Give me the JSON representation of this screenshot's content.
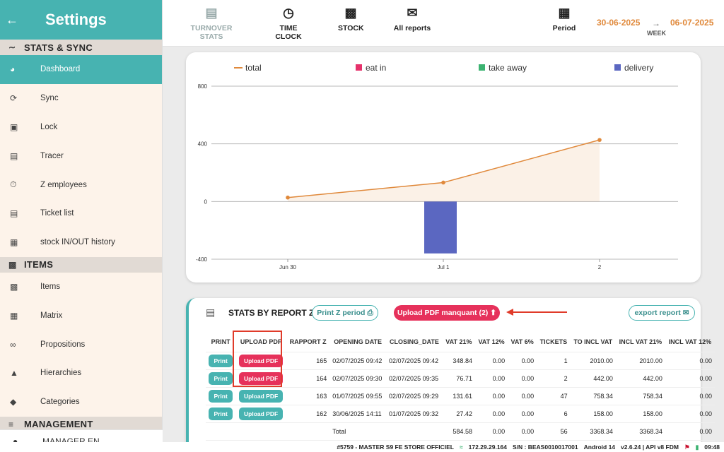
{
  "sidebar": {
    "title": "Settings",
    "sections": [
      {
        "label": "STATS & SYNC",
        "icon": "trend-icon"
      },
      {
        "label": "ITEMS",
        "icon": "box-icon"
      },
      {
        "label": "MANAGEMENT",
        "icon": "sliders-icon"
      }
    ],
    "stats_items": [
      {
        "label": "Dashboard",
        "icon": "pie-chart-icon",
        "active": true
      },
      {
        "label": "Sync",
        "icon": "sync-icon"
      },
      {
        "label": "Lock",
        "icon": "lock-icon"
      },
      {
        "label": "Tracer",
        "icon": "clipboard-icon"
      },
      {
        "label": "Z employees",
        "icon": "stopwatch-icon"
      },
      {
        "label": "Ticket list",
        "icon": "ticket-list-icon"
      },
      {
        "label": "stock IN/OUT history",
        "icon": "stock-history-icon"
      }
    ],
    "items_items": [
      {
        "label": "Items",
        "icon": "boxes-icon"
      },
      {
        "label": "Matrix",
        "icon": "grid-icon"
      },
      {
        "label": "Propositions",
        "icon": "link-icon"
      },
      {
        "label": "Hierarchies",
        "icon": "hierarchy-icon"
      },
      {
        "label": "Categories",
        "icon": "tag-icon"
      }
    ],
    "user": "MANAGER EN"
  },
  "topnav": {
    "turnover": "TURNOVER STATS",
    "timeclock": "TIME CLOCK",
    "stock": "STOCK",
    "reports": "All reports",
    "period": "Period",
    "date_from": "30-06-2025",
    "date_to": "06-07-2025",
    "week": "WEEK"
  },
  "chart_data": {
    "type": "line",
    "categories": [
      "Jun 30",
      "Jul 1",
      "2"
    ],
    "legend": [
      "total",
      "eat in",
      "take away",
      "delivery"
    ],
    "legend_colors": [
      "#e0893b",
      "#e6316b",
      "#3cb371",
      "#5b67c1"
    ],
    "series": [
      {
        "name": "total",
        "type": "area-line",
        "values": [
          27.42,
          131.61,
          426.98
        ]
      },
      {
        "name": "eat in",
        "type": "bar",
        "values": [
          0,
          0,
          0
        ]
      },
      {
        "name": "take away",
        "type": "bar",
        "values": [
          0,
          0,
          0
        ]
      },
      {
        "name": "delivery",
        "type": "bar",
        "values": [
          0,
          -360,
          0
        ]
      }
    ],
    "yticks": [
      800,
      400,
      0,
      -400
    ],
    "ylim": [
      -400,
      800
    ],
    "legend_position": "top",
    "grid": true
  },
  "report": {
    "title": "STATS BY REPORT Z",
    "print_z_label": "Print Z period",
    "upload_missing_label": "Upload PDF manquant (2)",
    "export_label": "export report",
    "columns": [
      "PRINT",
      "UPLOAD PDF",
      "RAPPORT Z",
      "OPENING DATE",
      "CLOSING_DATE",
      "VAT 21%",
      "VAT 12%",
      "VAT 6%",
      "TICKETS",
      "TO INCL VAT",
      "INCL VAT 21%",
      "INCL VAT 12%"
    ],
    "print_label": "Print",
    "upload_label": "Upload PDF",
    "rows": [
      {
        "z": "165",
        "open": "02/07/2025 09:42",
        "close": "02/07/2025 09:42",
        "vat21": "348.84",
        "vat12": "0.00",
        "vat6": "0.00",
        "tickets": "1",
        "total": "2010.00",
        "incl21": "2010.00",
        "incl12": "0.00",
        "missing": true
      },
      {
        "z": "164",
        "open": "02/07/2025 09:30",
        "close": "02/07/2025 09:35",
        "vat21": "76.71",
        "vat12": "0.00",
        "vat6": "0.00",
        "tickets": "2",
        "total": "442.00",
        "incl21": "442.00",
        "incl12": "0.00",
        "missing": true
      },
      {
        "z": "163",
        "open": "01/07/2025 09:55",
        "close": "02/07/2025 09:29",
        "vat21": "131.61",
        "vat12": "0.00",
        "vat6": "0.00",
        "tickets": "47",
        "total": "758.34",
        "incl21": "758.34",
        "incl12": "0.00",
        "missing": false
      },
      {
        "z": "162",
        "open": "30/06/2025 14:11",
        "close": "01/07/2025 09:32",
        "vat21": "27.42",
        "vat12": "0.00",
        "vat6": "0.00",
        "tickets": "6",
        "total": "158.00",
        "incl21": "158.00",
        "incl12": "0.00",
        "missing": false
      }
    ],
    "total_row": {
      "label": "Total",
      "vat21": "584.58",
      "vat12": "0.00",
      "vat6": "0.00",
      "tickets": "56",
      "total": "3368.34",
      "incl21": "3368.34",
      "incl12": "0.00"
    }
  },
  "statusbar": {
    "store": "#5759 - MASTER S9 FE STORE OFFICIEL",
    "ip": "172.29.29.164",
    "serial": "S/N : BEAS0010017001",
    "android": "Android 14",
    "version": "v2.6.24 | API v8 FDM",
    "time": "09:48"
  }
}
